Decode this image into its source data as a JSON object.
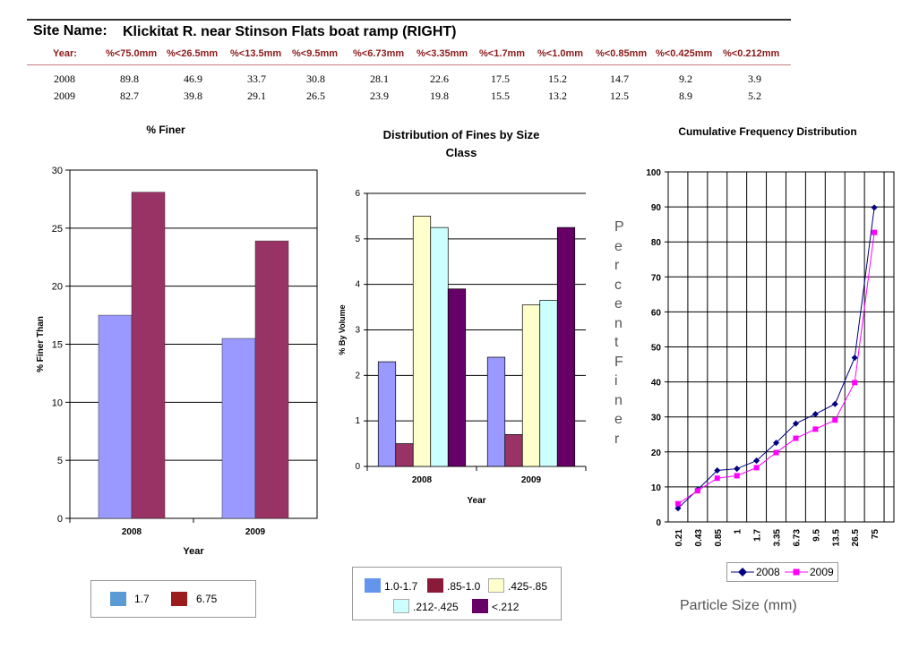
{
  "site": {
    "label": "Site Name:",
    "name": "Klickitat R. near Stinson Flats boat ramp (RIGHT)"
  },
  "table": {
    "headers": [
      "Year:",
      "%<75.0mm",
      "%<26.5mm",
      "%<13.5mm",
      "%<9.5mm",
      "%<6.73mm",
      "%<3.35mm",
      "%<1.7mm",
      "%<1.0mm",
      "%<0.85mm",
      "%<0.425mm",
      "%<0.212mm"
    ],
    "rows": [
      [
        "2008",
        "89.8",
        "46.9",
        "33.7",
        "30.8",
        "28.1",
        "22.6",
        "17.5",
        "15.2",
        "14.7",
        "9.2",
        "3.9"
      ],
      [
        "2009",
        "82.7",
        "39.8",
        "29.1",
        "26.5",
        "23.9",
        "19.8",
        "15.5",
        "13.2",
        "12.5",
        "8.9",
        "5.2"
      ]
    ]
  },
  "colors": {
    "lavender": "#9999ff",
    "maroon": "#993366",
    "cream": "#ffffcc",
    "lightcyan": "#ccffff",
    "purple": "#660066",
    "navy": "#000080",
    "magenta": "#ff00ff",
    "legend1_a": "#5b9bd5",
    "legend1_b": "#9b1c1c",
    "legend2_a": "#6495ed",
    "legend2_b": "#8b1a3a"
  },
  "chart_data": [
    {
      "type": "bar",
      "title": "% Finer",
      "xlabel": "Year",
      "ylabel": "% Finer Than",
      "categories": [
        "2008",
        "2009"
      ],
      "series": [
        {
          "name": "1.7",
          "values": [
            17.5,
            15.5
          ]
        },
        {
          "name": "6.75",
          "values": [
            28.1,
            23.9
          ]
        }
      ],
      "ylim": [
        0,
        30
      ],
      "yticks": [
        "0",
        "5",
        "10",
        "15",
        "20",
        "25",
        "30"
      ],
      "grid": true,
      "legend": "bottom"
    },
    {
      "type": "bar",
      "title": "Distribution of Fines by Size Class",
      "xlabel": "Year",
      "ylabel": "% By Volume",
      "categories": [
        "2008",
        "2009"
      ],
      "series": [
        {
          "name": "1.0-1.7",
          "values": [
            2.3,
            2.4
          ]
        },
        {
          "name": ".85-1.0",
          "values": [
            0.5,
            0.7
          ]
        },
        {
          "name": ".425-.85",
          "values": [
            5.5,
            3.55
          ]
        },
        {
          "name": ".212-.425",
          "values": [
            5.25,
            3.65
          ]
        },
        {
          "name": "<.212",
          "values": [
            3.9,
            5.25
          ]
        }
      ],
      "ylim": [
        0,
        6
      ],
      "yticks": [
        "0",
        "1",
        "2",
        "3",
        "4",
        "5",
        "6"
      ],
      "grid": true,
      "legend": "bottom"
    },
    {
      "type": "line",
      "title": "Cumulative Frequency Distribution",
      "xlabel": "Particle Size (mm)",
      "ylabel": "PercentFiner",
      "x": [
        "0.21",
        "0.43",
        "0.85",
        "1",
        "1.7",
        "3.35",
        "6.73",
        "9.5",
        "13.5",
        "26.5",
        "75"
      ],
      "series": [
        {
          "name": "2008",
          "values": [
            3.9,
            9.2,
            14.7,
            15.2,
            17.5,
            22.6,
            28.1,
            30.8,
            33.7,
            46.9,
            89.8
          ]
        },
        {
          "name": "2009",
          "values": [
            5.2,
            8.9,
            12.5,
            13.2,
            15.5,
            19.8,
            23.9,
            26.5,
            29.1,
            39.8,
            82.7
          ]
        }
      ],
      "ylim": [
        0,
        100
      ],
      "yticks": [
        "0",
        "10",
        "20",
        "30",
        "40",
        "50",
        "60",
        "70",
        "80",
        "90",
        "100"
      ],
      "grid": true,
      "legend": "bottom"
    }
  ]
}
